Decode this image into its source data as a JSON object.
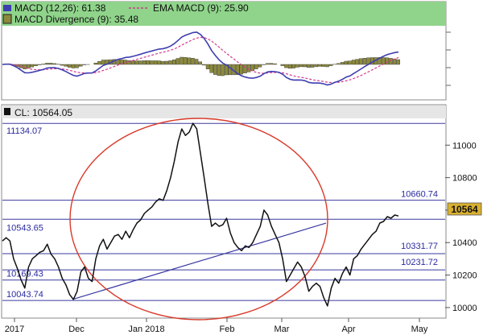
{
  "colors": {
    "header_bg": "#8fd48a",
    "macd_line": "#3e3eb0",
    "ema_line": "#d23a8c",
    "hist_fill": "#8c8a3c",
    "price_line": "#111111",
    "level_line": "#3a3aa0",
    "trend_line": "#3a3aa0",
    "circle": "#d93a2a",
    "label_blue": "#2a2aa0",
    "current_bg": "#d9b030"
  },
  "macd_panel": {
    "legend": {
      "macd": "MACD (12,26): 61.38",
      "ema": "EMA MACD (9): 25.90",
      "divergence": "MACD Divergence (9): 35.48"
    }
  },
  "price_panel": {
    "header": "CL: 10564.05",
    "current_value": "10564",
    "current_price": 10564.05
  },
  "chart_data": [
    {
      "type": "line",
      "title": "MACD (12,26)",
      "series": [
        {
          "name": "MACD (12,26)",
          "last_value": 61.38
        },
        {
          "name": "EMA MACD (9)",
          "last_value": 25.9
        },
        {
          "name": "MACD Divergence (9)",
          "last_value": 35.48,
          "style": "histogram"
        }
      ],
      "grid": false
    },
    {
      "type": "line",
      "title": "CL: 10564.05",
      "x_ticks": [
        "2017",
        "Dec",
        "Jan 2018",
        "Feb",
        "Mar",
        "Apr",
        "May"
      ],
      "y_ticks": [
        10000,
        10200,
        10400,
        10600,
        10800,
        11000
      ],
      "ylim": [
        9940,
        11160
      ],
      "levels": [
        {
          "label": "11134.07",
          "value": 11134.07
        },
        {
          "label": "10660.74",
          "value": 10660.74
        },
        {
          "label": "10543.65",
          "value": 10543.65
        },
        {
          "label": "10331.77",
          "value": 10331.77
        },
        {
          "label": "10231.72",
          "value": 10231.72
        },
        {
          "label": "10169.43",
          "value": 10169.43
        },
        {
          "label": "10043.74",
          "value": 10043.74
        }
      ],
      "trendline": {
        "from": {
          "x": "Dec",
          "y": 10050
        },
        "to": {
          "x": "Mar",
          "y": 10520
        }
      },
      "series": [
        {
          "values": [
            10410,
            10430,
            10410,
            10300,
            10240,
            10170,
            10120,
            10250,
            10300,
            10320,
            10340,
            10350,
            10390,
            10330,
            10300,
            10250,
            10180,
            10140,
            10080,
            10050,
            10100,
            10220,
            10250,
            10180,
            10160,
            10300,
            10380,
            10420,
            10360,
            10400,
            10440,
            10450,
            10420,
            10470,
            10430,
            10480,
            10520,
            10540,
            10580,
            10600,
            10620,
            10650,
            10670,
            10660,
            10720,
            10800,
            10900,
            11020,
            11100,
            11060,
            11080,
            11134,
            11100,
            10950,
            10800,
            10640,
            10500,
            10520,
            10500,
            10510,
            10550,
            10460,
            10400,
            10370,
            10350,
            10380,
            10370,
            10400,
            10450,
            10500,
            10600,
            10570,
            10500,
            10450,
            10400,
            10300,
            10160,
            10200,
            10240,
            10280,
            10250,
            10190,
            10100,
            10130,
            10150,
            10130,
            10060,
            10010,
            10120,
            10180,
            10150,
            10210,
            10250,
            10200,
            10300,
            10320,
            10360,
            10390,
            10420,
            10450,
            10470,
            10520,
            10530,
            10560,
            10550,
            10570,
            10564
          ]
        }
      ]
    }
  ]
}
